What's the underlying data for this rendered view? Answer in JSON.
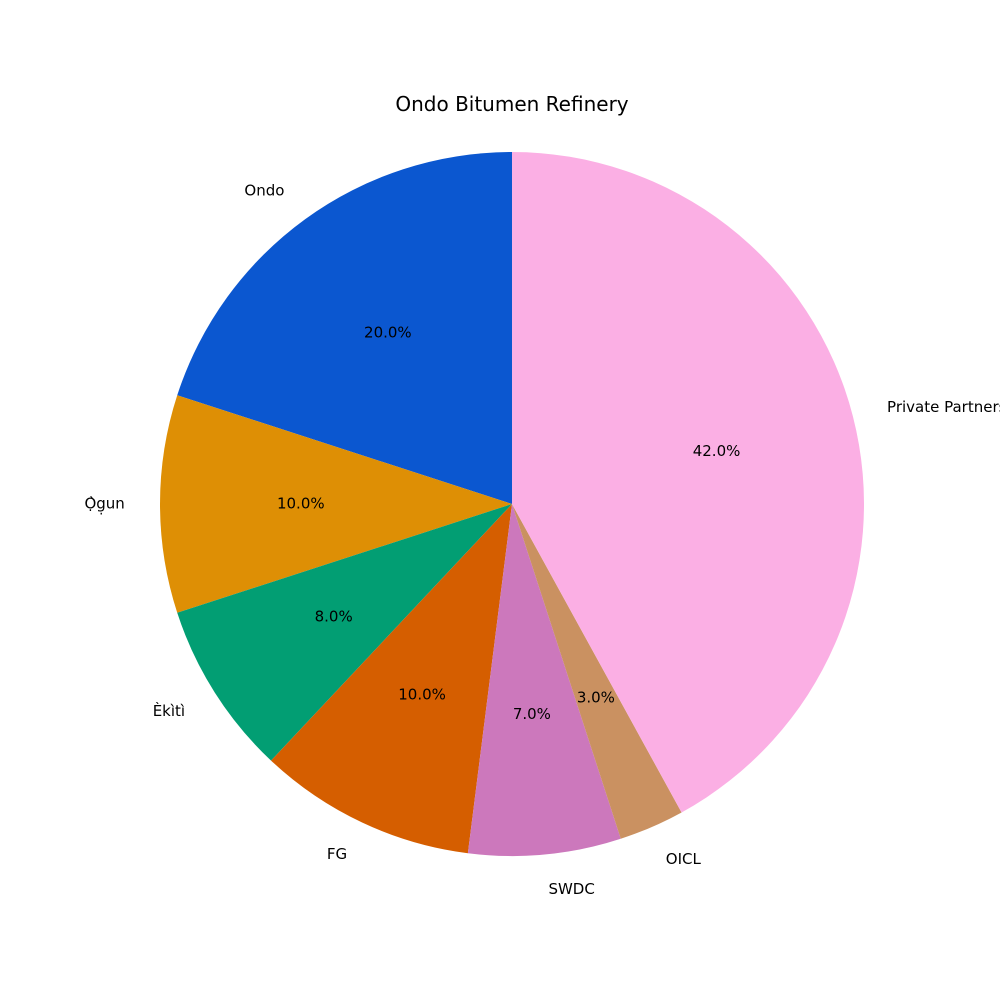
{
  "chart_data": {
    "type": "pie",
    "title": "Ondo Bitumen Refinery",
    "start": "top",
    "direction": "counterclockwise",
    "slices": [
      {
        "label": "Ondo",
        "value": 20.0,
        "pct_label": "20.0%",
        "color": "#0b57d0"
      },
      {
        "label": "Ọ̀g̣un",
        "value": 10.0,
        "pct_label": "10.0%",
        "color": "#de8f05"
      },
      {
        "label": "Èkìtì",
        "value": 8.0,
        "pct_label": "8.0%",
        "color": "#029e73"
      },
      {
        "label": "FG",
        "value": 10.0,
        "pct_label": "10.0%",
        "color": "#d55e00"
      },
      {
        "label": "SWDC",
        "value": 7.0,
        "pct_label": "7.0%",
        "color": "#cc78bc"
      },
      {
        "label": "OICL",
        "value": 3.0,
        "pct_label": "3.0%",
        "color": "#ca9161"
      },
      {
        "label": "Private Partners",
        "value": 42.0,
        "pct_label": "42.0%",
        "color": "#fbafe4"
      }
    ]
  }
}
